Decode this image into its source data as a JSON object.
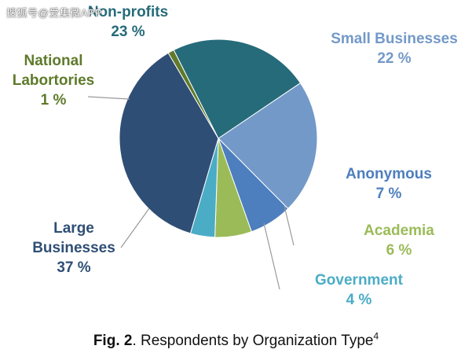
{
  "watermark": "搜狐号@爱集微APP",
  "chart_data": {
    "type": "pie",
    "title": "",
    "slices": [
      {
        "label": "Small Businesses",
        "value": 22,
        "value_label": "22 %",
        "color": "#7399c8",
        "label_color": "#7399c8"
      },
      {
        "label": "Anonymous",
        "value": 7,
        "value_label": "7 %",
        "color": "#4d7ebe",
        "label_color": "#4d7ebe"
      },
      {
        "label": "Academia",
        "value": 6,
        "value_label": "6 %",
        "color": "#9bbb59",
        "label_color": "#9bbb59"
      },
      {
        "label": "Government",
        "value": 4,
        "value_label": "4 %",
        "color": "#4bacc6",
        "label_color": "#4bacc6"
      },
      {
        "label": "Large Businesses",
        "value": 37,
        "value_label": "37 %",
        "color": "#2f4e75",
        "label_color": "#2f4e75"
      },
      {
        "label": "National Labortories",
        "value": 1,
        "value_label": "1 %",
        "color": "#5f7a2a",
        "label_color": "#5f7a2a"
      },
      {
        "label": "Non-profits",
        "value": 23,
        "value_label": "23 %",
        "color": "#266b7a",
        "label_color": "#266b7a"
      }
    ],
    "legend": "none"
  },
  "caption": {
    "fig_label": "Fig. 2",
    "text": ". Respondents by Organization Type",
    "sup": "4"
  }
}
